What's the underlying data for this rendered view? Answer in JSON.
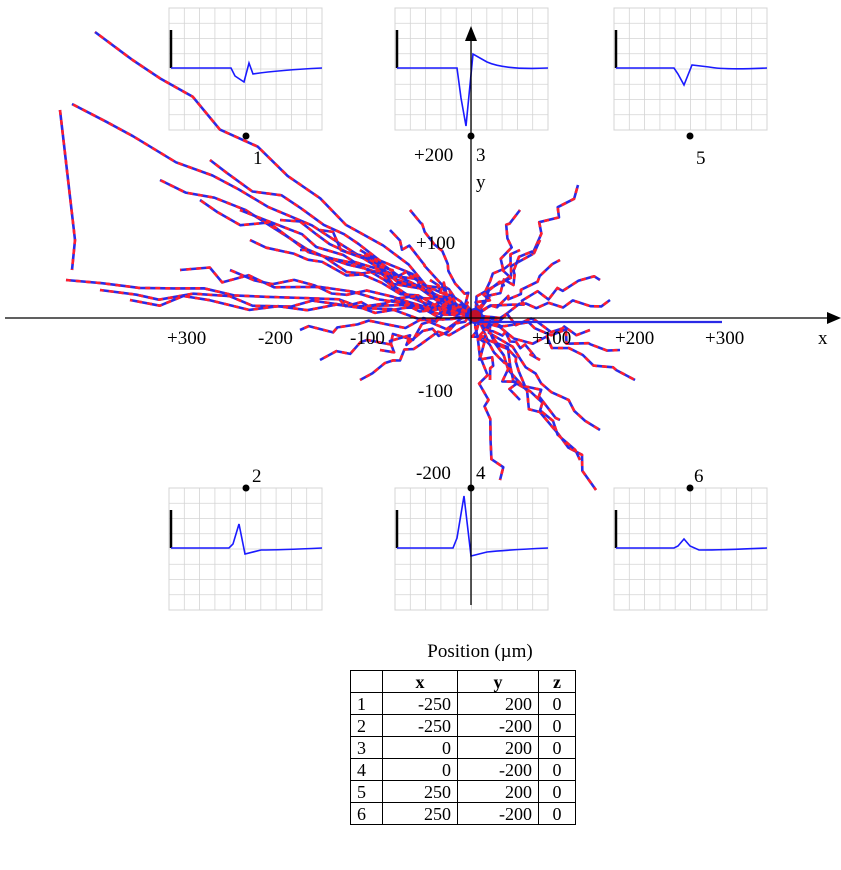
{
  "axes": {
    "x_label": "x",
    "y_label": "y",
    "x_ticks": [
      "+300",
      "-200",
      "-100",
      "+100",
      "+200",
      "+300"
    ],
    "y_ticks": [
      "+200",
      "+100",
      "-100",
      "-200"
    ]
  },
  "electrodes": [
    {
      "label": "1",
      "x": -250,
      "y": 200,
      "waveform": "negative-small"
    },
    {
      "label": "2",
      "x": -250,
      "y": -200,
      "waveform": "positive-medium"
    },
    {
      "label": "3",
      "x": 0,
      "y": 200,
      "waveform": "negative-large"
    },
    {
      "label": "4",
      "x": 0,
      "y": -200,
      "waveform": "positive-large"
    },
    {
      "label": "5",
      "x": 250,
      "y": 200,
      "waveform": "negative-medium"
    },
    {
      "label": "6",
      "x": 250,
      "y": -200,
      "waveform": "positive-small"
    }
  ],
  "colors": {
    "dendrite_a": "#ff1f2e",
    "dendrite_b": "#2a2ae6",
    "trace": "#1a1aff",
    "soma": "#c0102a",
    "grid": "#d4d4d4"
  },
  "table": {
    "caption": "Position (µm)",
    "headers": [
      "",
      "x",
      "y",
      "z"
    ],
    "rows": [
      [
        "1",
        "-250",
        "200",
        "0"
      ],
      [
        "2",
        "-250",
        "-200",
        "0"
      ],
      [
        "3",
        "0",
        "200",
        "0"
      ],
      [
        "4",
        "0",
        "-200",
        "0"
      ],
      [
        "5",
        "250",
        "200",
        "0"
      ],
      [
        "6",
        "250",
        "-200",
        "0"
      ]
    ]
  }
}
